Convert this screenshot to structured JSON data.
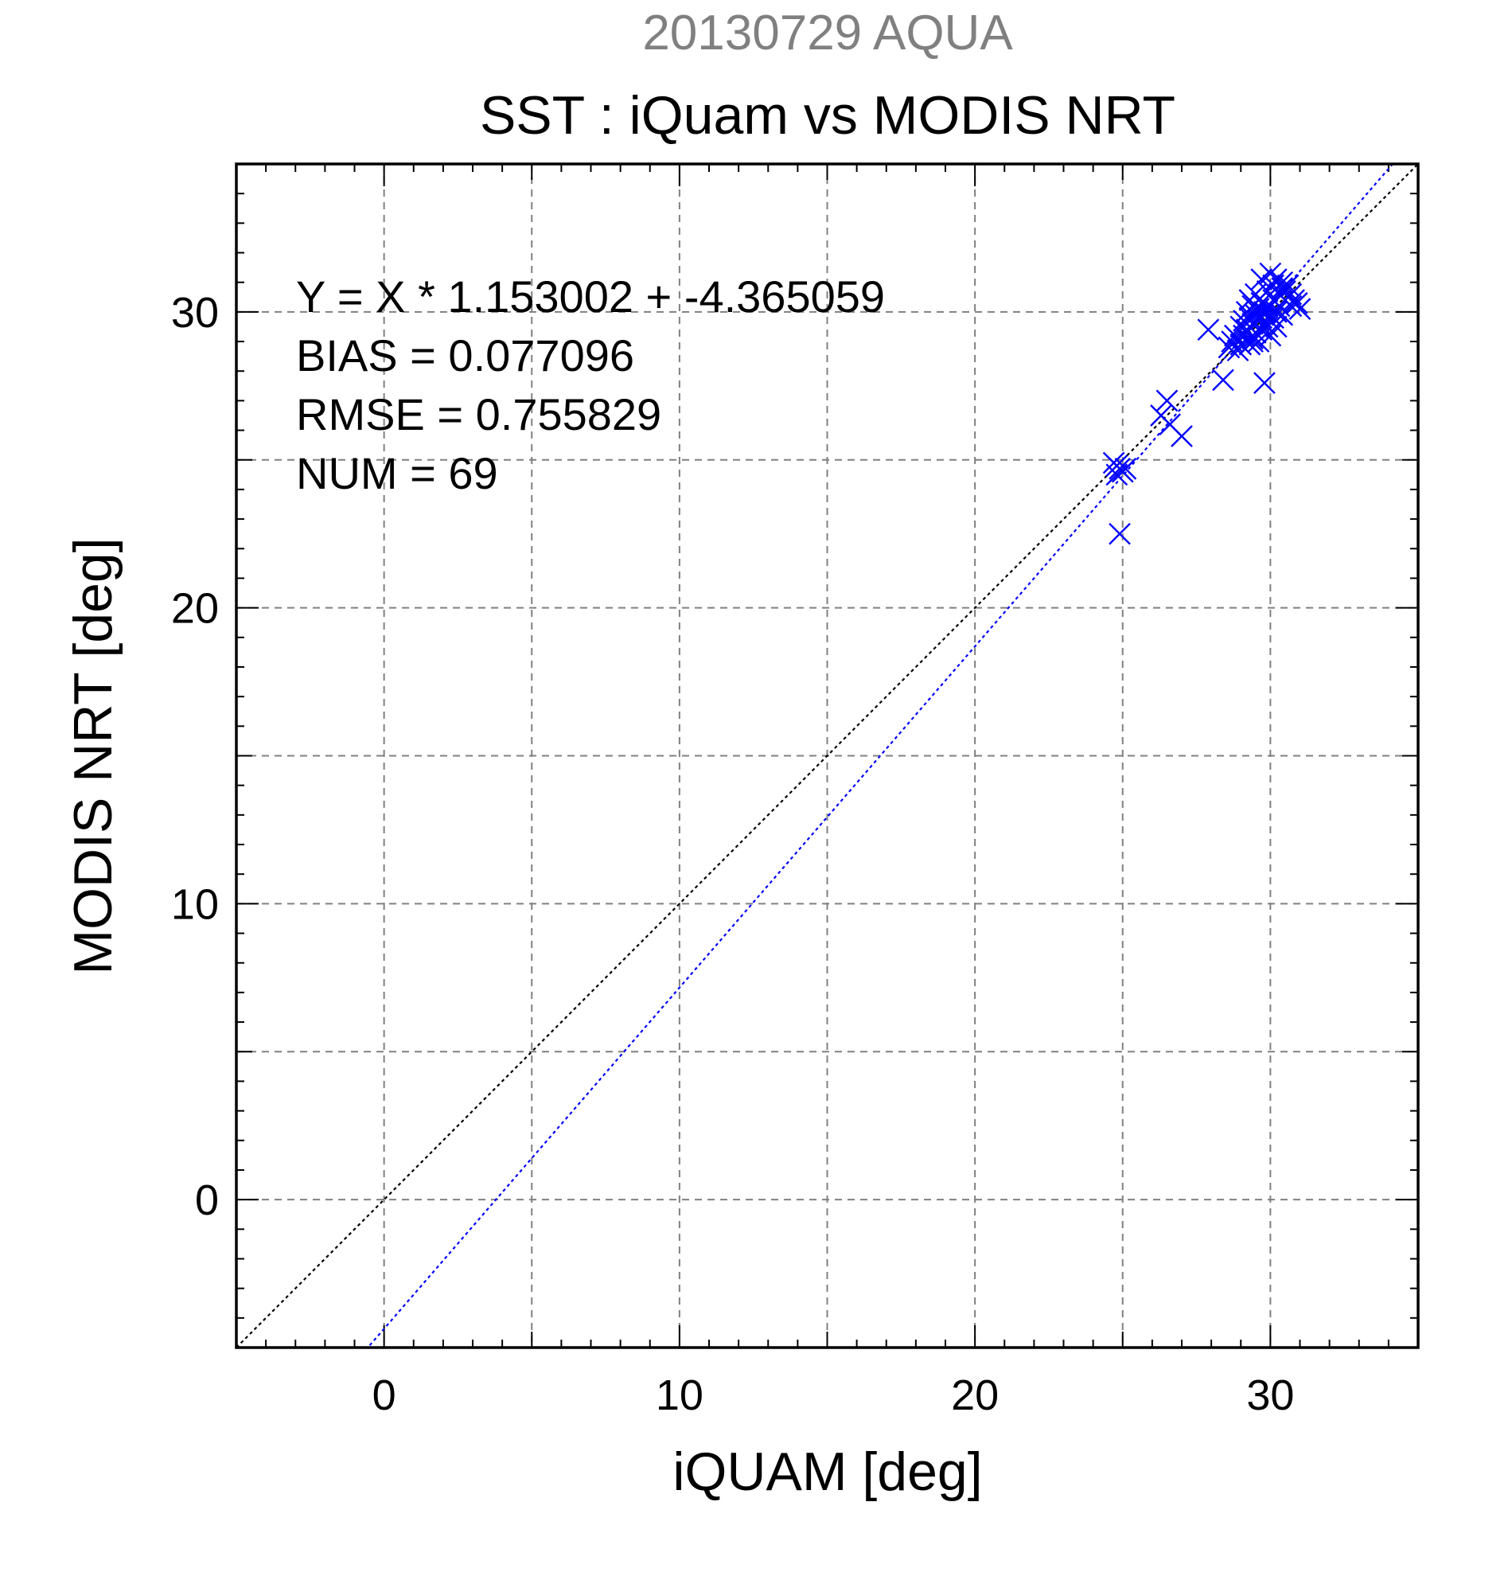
{
  "chart_data": {
    "type": "scatter",
    "supertitle": "20130729 AQUA",
    "title": "SST : iQuam vs MODIS NRT",
    "xlabel": "iQUAM [deg]",
    "ylabel": "MODIS NRT [deg]",
    "xlim": [
      -5,
      35
    ],
    "ylim": [
      -5,
      35
    ],
    "xticks": [
      0,
      10,
      20,
      30
    ],
    "yticks": [
      0,
      10,
      20,
      30
    ],
    "xtick_labels": [
      "0",
      "10",
      "20",
      "30"
    ],
    "ytick_labels": [
      "0",
      "10",
      "20",
      "30"
    ],
    "grid": true,
    "marker": "x",
    "colors": {
      "points": "#0000ff",
      "fit_line": "#0000ff",
      "identity_line": "#000000",
      "supertitle": "#808080",
      "grid": "#808080"
    },
    "annotations": [
      "Y = X * 1.153002 + -4.365059",
      "BIAS = 0.077096",
      "RMSE = 0.755829",
      "NUM = 69"
    ],
    "fit": {
      "slope": 1.153002,
      "intercept": -4.365059
    },
    "identity": {
      "slope": 1,
      "intercept": 0
    },
    "series": [
      {
        "points": [
          [
            24.7,
            24.9
          ],
          [
            24.8,
            24.8
          ],
          [
            24.9,
            24.7
          ],
          [
            25.0,
            24.6
          ],
          [
            24.8,
            24.5
          ],
          [
            25.1,
            24.7
          ],
          [
            24.9,
            22.5
          ],
          [
            26.5,
            27.0
          ],
          [
            26.3,
            26.5
          ],
          [
            26.6,
            26.2
          ],
          [
            27.0,
            25.8
          ],
          [
            27.9,
            29.4
          ],
          [
            28.4,
            27.7
          ],
          [
            28.6,
            28.8
          ],
          [
            28.7,
            29.0
          ],
          [
            28.8,
            29.2
          ],
          [
            28.9,
            28.7
          ],
          [
            29.0,
            29.5
          ],
          [
            29.0,
            28.9
          ],
          [
            29.1,
            29.7
          ],
          [
            29.1,
            29.2
          ],
          [
            29.2,
            30.0
          ],
          [
            29.2,
            29.4
          ],
          [
            29.3,
            28.9
          ],
          [
            29.3,
            29.8
          ],
          [
            29.3,
            30.4
          ],
          [
            29.4,
            29.1
          ],
          [
            29.4,
            29.6
          ],
          [
            29.4,
            30.2
          ],
          [
            29.5,
            29.9
          ],
          [
            29.5,
            29.3
          ],
          [
            29.5,
            30.6
          ],
          [
            29.6,
            29.0
          ],
          [
            29.6,
            29.7
          ],
          [
            29.6,
            30.1
          ],
          [
            29.7,
            29.4
          ],
          [
            29.7,
            30.3
          ],
          [
            29.7,
            29.8
          ],
          [
            29.7,
            31.1
          ],
          [
            29.8,
            29.6
          ],
          [
            29.8,
            30.0
          ],
          [
            29.8,
            27.6
          ],
          [
            29.9,
            29.5
          ],
          [
            29.9,
            30.2
          ],
          [
            29.9,
            30.7
          ],
          [
            30.0,
            29.9
          ],
          [
            30.0,
            29.2
          ],
          [
            30.0,
            31.3
          ],
          [
            30.1,
            30.4
          ],
          [
            30.1,
            29.8
          ],
          [
            30.1,
            30.9
          ],
          [
            30.2,
            30.0
          ],
          [
            30.2,
            29.5
          ],
          [
            30.2,
            31.1
          ],
          [
            30.3,
            30.6
          ],
          [
            30.3,
            30.2
          ],
          [
            30.4,
            30.8
          ],
          [
            30.4,
            29.9
          ],
          [
            30.4,
            31.0
          ],
          [
            30.5,
            30.4
          ],
          [
            30.5,
            30.7
          ],
          [
            30.6,
            30.5
          ],
          [
            30.6,
            30.9
          ],
          [
            30.7,
            30.2
          ],
          [
            30.7,
            30.6
          ],
          [
            30.8,
            30.4
          ],
          [
            30.9,
            30.3
          ],
          [
            31.0,
            30.1
          ],
          [
            29.4,
            29.0
          ]
        ]
      }
    ]
  }
}
